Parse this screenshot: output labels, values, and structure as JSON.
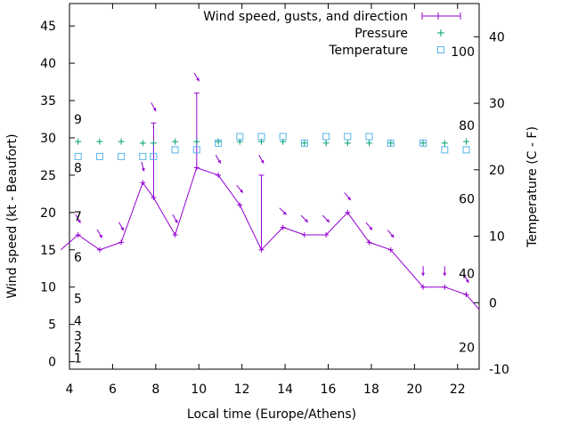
{
  "chart_data": {
    "type": "line",
    "xlabel": "Local time (Europe/Athens)",
    "ylabel": "Wind speed (kt - Beaufort)",
    "y2label": "Temperature (C - F)",
    "xlim": [
      4,
      23
    ],
    "ylim": [
      -1,
      48
    ],
    "y2lim": [
      -10,
      45
    ],
    "x_ticks": [
      4,
      6,
      8,
      10,
      12,
      14,
      16,
      18,
      20,
      22
    ],
    "y_ticks": [
      0,
      5,
      10,
      15,
      20,
      25,
      30,
      35,
      40,
      45
    ],
    "y2_ticks": [
      -10,
      0,
      10,
      20,
      30,
      40
    ],
    "beaufort_labels": [
      {
        "label": "1",
        "y": 0.5
      },
      {
        "label": "2",
        "y": 2
      },
      {
        "label": "3",
        "y": 3.5
      },
      {
        "label": "4",
        "y": 5.5
      },
      {
        "label": "5",
        "y": 8.5
      },
      {
        "label": "6",
        "y": 14
      },
      {
        "label": "7",
        "y": 19.5
      },
      {
        "label": "8",
        "y": 26
      },
      {
        "label": "9",
        "y": 32.5
      }
    ],
    "fahrenheit_labels": [
      {
        "label": "20",
        "t": -6.7
      },
      {
        "label": "40",
        "t": 4.4
      },
      {
        "label": "60",
        "t": 15.6
      },
      {
        "label": "80",
        "t": 26.7
      },
      {
        "label": "100",
        "t": 37.8
      }
    ],
    "colors": {
      "wind": "#9400d3",
      "pressure": "#009e73",
      "temperature": "#56b4e9"
    },
    "series": [
      {
        "name": "Wind speed, gusts, and direction",
        "x": [
          3.6,
          4.4,
          5.4,
          6.4,
          7.4,
          7.9,
          8.9,
          9.9,
          10.9,
          11.9,
          12.9,
          13.9,
          14.9,
          15.9,
          16.9,
          17.9,
          18.9,
          20.4,
          21.4,
          22.4,
          23.0
        ],
        "values": [
          15,
          17,
          15,
          16,
          24,
          22,
          17,
          26,
          25,
          21,
          15,
          18,
          17,
          17,
          20,
          16,
          15,
          10,
          10,
          9,
          7
        ],
        "gusts": [
          null,
          null,
          null,
          null,
          null,
          32,
          null,
          36,
          null,
          null,
          25,
          null,
          null,
          null,
          null,
          null,
          null,
          null,
          null,
          null,
          null
        ],
        "direction_deg": [
          0,
          330,
          330,
          330,
          345,
          330,
          330,
          330,
          330,
          320,
          330,
          315,
          315,
          315,
          320,
          320,
          320,
          0,
          0,
          330,
          0
        ]
      },
      {
        "name": "Pressure",
        "x": [
          4.4,
          5.4,
          6.4,
          7.4,
          7.9,
          8.9,
          9.9,
          10.9,
          11.9,
          12.9,
          13.9,
          14.9,
          15.9,
          16.9,
          17.9,
          18.9,
          20.4,
          21.4,
          22.4
        ],
        "values": [
          29.5,
          29.5,
          29.5,
          29.3,
          29.3,
          29.5,
          29.5,
          29.5,
          29.5,
          29.5,
          29.5,
          29.3,
          29.3,
          29.3,
          29.3,
          29.3,
          29.3,
          29.3,
          29.5
        ]
      },
      {
        "name": "Temperature",
        "x": [
          4.4,
          5.4,
          6.4,
          7.4,
          7.9,
          8.9,
          9.9,
          10.9,
          11.9,
          12.9,
          13.9,
          14.9,
          15.9,
          16.9,
          17.9,
          18.9,
          20.4,
          21.4,
          22.4
        ],
        "values": [
          22,
          22,
          22,
          22,
          22,
          23,
          23,
          24,
          25,
          25,
          25,
          24,
          25,
          25,
          25,
          24,
          24,
          23,
          23
        ]
      }
    ]
  }
}
